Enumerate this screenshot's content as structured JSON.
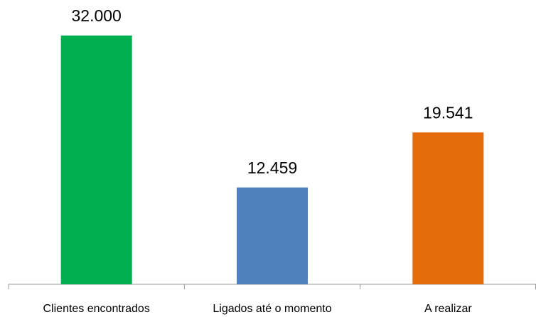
{
  "chart_data": {
    "type": "bar",
    "categories": [
      "Clientes encontrados",
      "Ligados até o momento",
      "A realizar"
    ],
    "values": [
      32000,
      12459,
      19541
    ],
    "value_labels": [
      "32.000",
      "12.459",
      "19.541"
    ],
    "colors": [
      "#00b050",
      "#4f81bd",
      "#e46c0a"
    ]
  }
}
